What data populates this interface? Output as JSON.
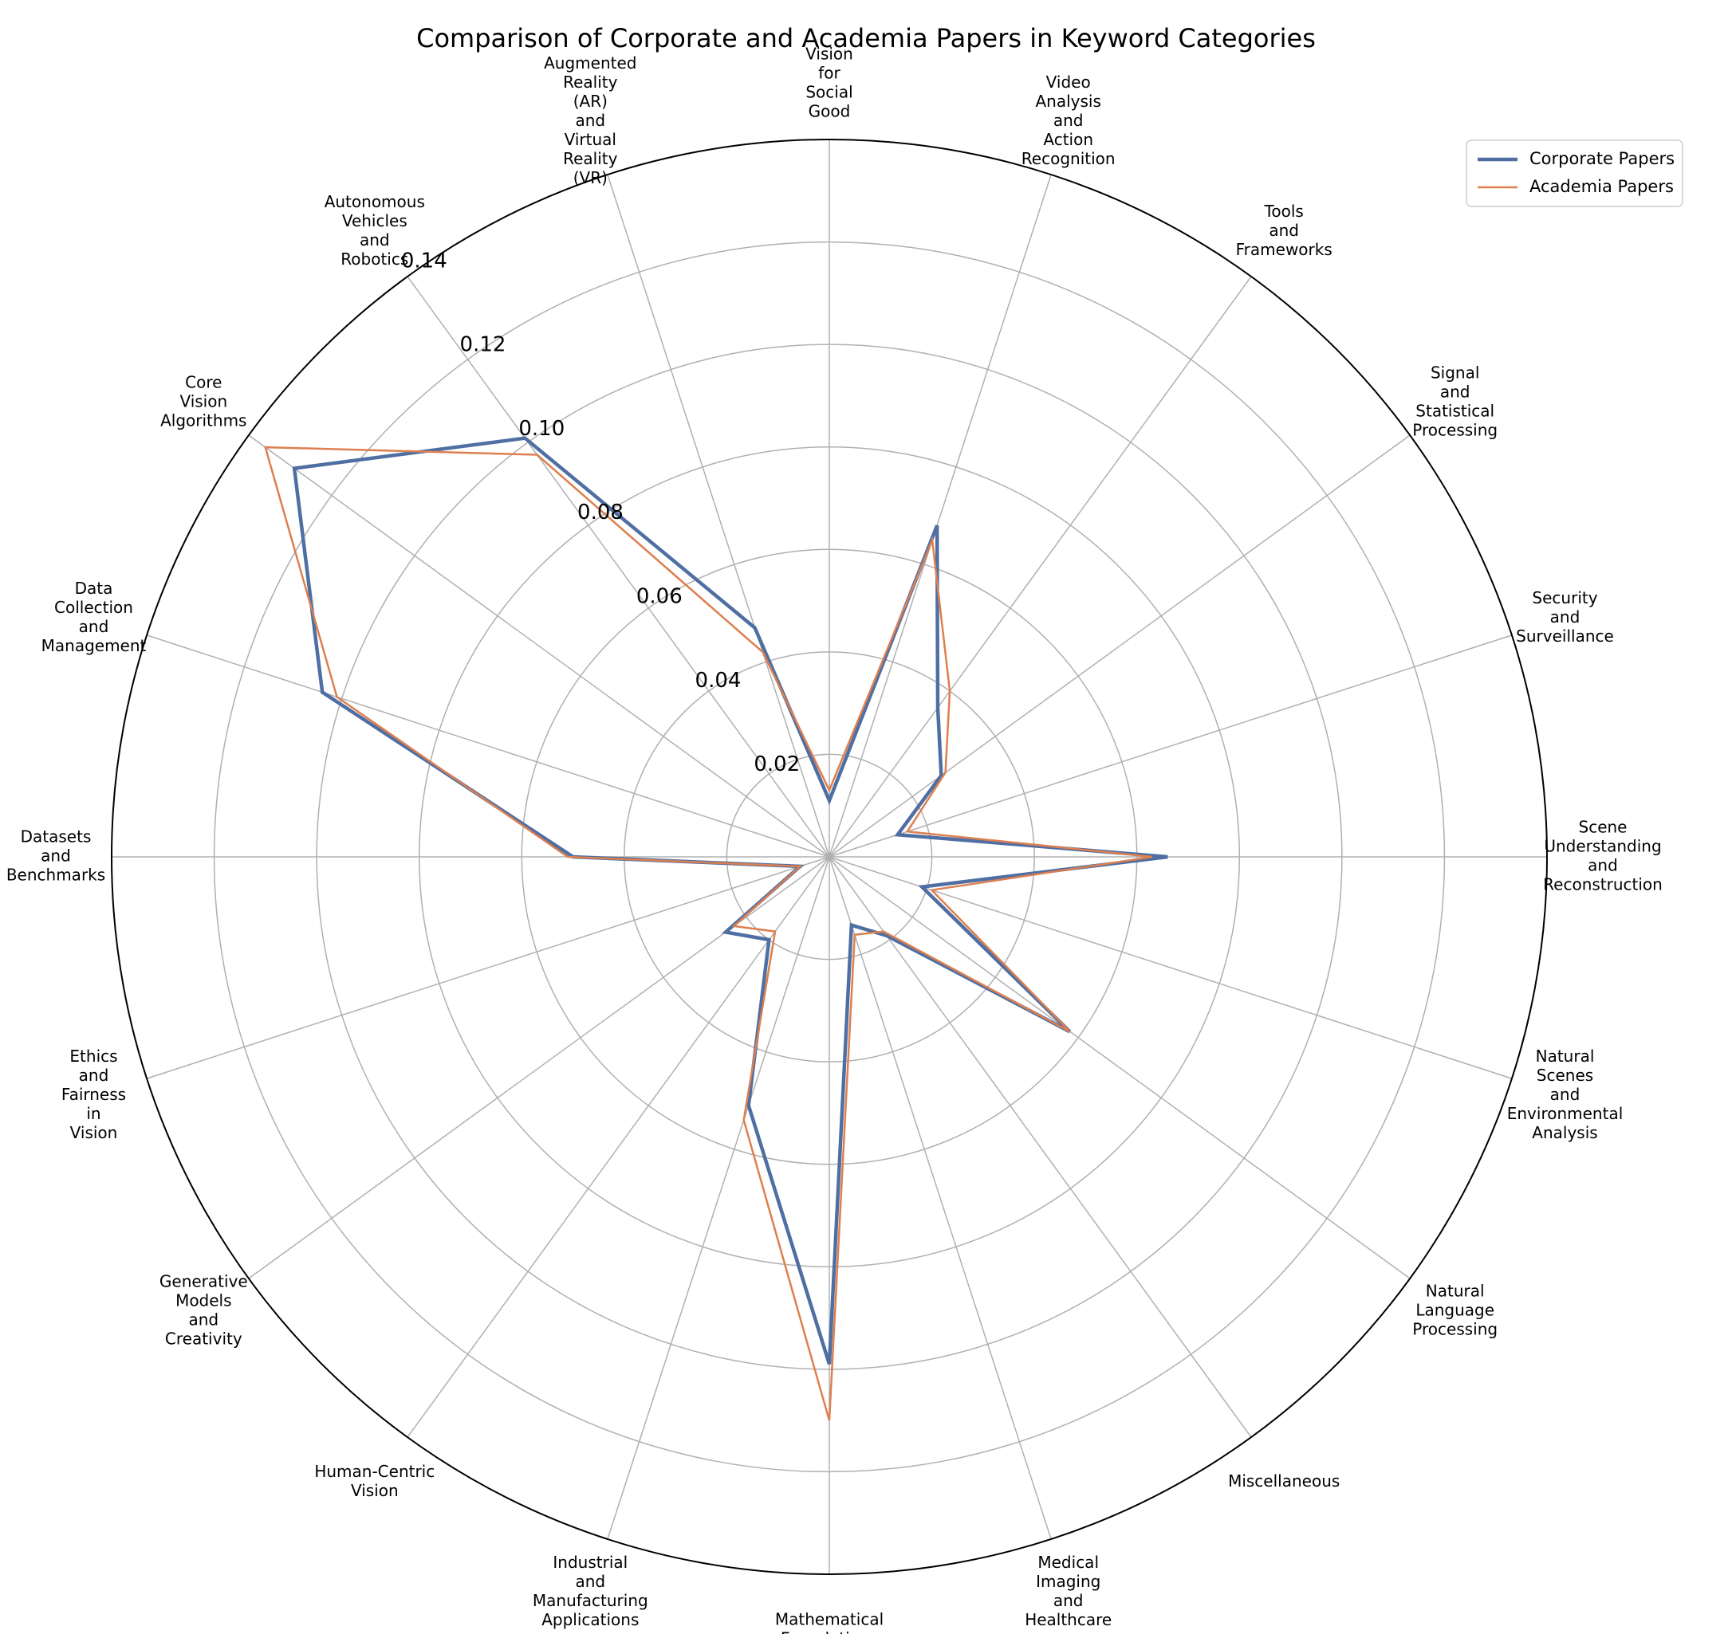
{
  "chart_data": {
    "type": "radar",
    "title": "Comparison of Corporate and Academia Papers in Keyword Categories",
    "categories": [
      "Scene Understanding and Reconstruction",
      "Security and Surveillance",
      "Signal and Statistical Processing",
      "Tools and Frameworks",
      "Video Analysis and Action Recognition",
      "Vision for Social Good",
      "Augmented Reality (AR) and Virtual Reality (VR)",
      "Autonomous Vehicles and Robotics",
      "Core Vision Algorithms",
      "Data Collection and Management",
      "Datasets and Benchmarks",
      "Ethics and Fairness in Vision",
      "Generative Models and Creativity",
      "Human-Centric Vision",
      "Industrial and Manufacturing Applications",
      "Mathematical Foundations",
      "Medical Imaging and Healthcare",
      "Miscellaneous",
      "Natural Language Processing",
      "Natural Scenes and Environmental Analysis"
    ],
    "series": [
      {
        "name": "Corporate Papers",
        "color": "#4f6fa3",
        "values": [
          0.066,
          0.014,
          0.027,
          0.036,
          0.068,
          0.011,
          0.047,
          0.101,
          0.129,
          0.104,
          0.05,
          0.006,
          0.025,
          0.02,
          0.051,
          0.099,
          0.014,
          0.019,
          0.058,
          0.019
        ]
      },
      {
        "name": "Academia Papers",
        "color": "#dd7f4f",
        "values": [
          0.063,
          0.016,
          0.028,
          0.04,
          0.065,
          0.013,
          0.042,
          0.097,
          0.136,
          0.101,
          0.051,
          0.006,
          0.023,
          0.018,
          0.054,
          0.11,
          0.016,
          0.018,
          0.058,
          0.021
        ]
      }
    ],
    "rlim": [
      0,
      0.14
    ],
    "rticks": [
      0.02,
      0.04,
      0.06,
      0.08,
      0.1,
      0.12,
      0.14
    ],
    "rtick_labels": [
      "0.02",
      "0.04",
      "0.06",
      "0.08",
      "0.10",
      "0.12",
      "0.14"
    ],
    "grid": true,
    "legend_position": "upper-right"
  }
}
